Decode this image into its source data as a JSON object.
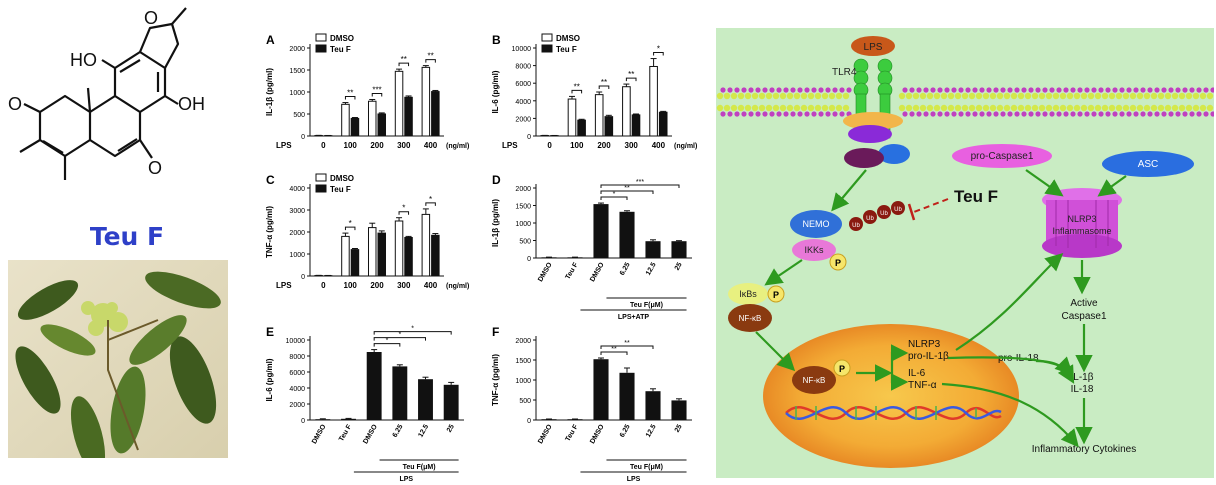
{
  "compound": {
    "name": "Teu F",
    "atom_labels": [
      "HO",
      "O",
      "OH",
      "O",
      "O"
    ]
  },
  "chart_data": [
    {
      "panel": "A",
      "type": "bar",
      "ylabel": "IL-1β (pg/ml)",
      "ylim": [
        0,
        2000
      ],
      "yticks": [
        0,
        500,
        1000,
        1500,
        2000
      ],
      "xlabel_prefix": "LPS",
      "x_unit": "(ng/ml)",
      "categories": [
        "0",
        "100",
        "200",
        "300",
        "400"
      ],
      "series": [
        {
          "name": "DMSO",
          "values": [
            10,
            720,
            790,
            1470,
            1560
          ],
          "errors": [
            5,
            40,
            40,
            50,
            40
          ]
        },
        {
          "name": "Teu F",
          "values": [
            8,
            400,
            500,
            880,
            1010
          ],
          "errors": [
            4,
            20,
            25,
            30,
            25
          ]
        }
      ],
      "significance": [
        "",
        "**",
        "***",
        "**",
        "**"
      ]
    },
    {
      "panel": "B",
      "type": "bar",
      "ylabel": "IL-6 (pg/ml)",
      "ylim": [
        0,
        10000
      ],
      "yticks": [
        0,
        2000,
        4000,
        6000,
        8000,
        10000
      ],
      "xlabel_prefix": "LPS",
      "x_unit": "(ng/ml)",
      "categories": [
        "0",
        "100",
        "200",
        "300",
        "400"
      ],
      "series": [
        {
          "name": "DMSO",
          "values": [
            50,
            4200,
            4700,
            5600,
            7900
          ],
          "errors": [
            20,
            300,
            300,
            300,
            900
          ]
        },
        {
          "name": "Teu F",
          "values": [
            40,
            1800,
            2200,
            2400,
            2700
          ],
          "errors": [
            20,
            100,
            150,
            100,
            100
          ]
        }
      ],
      "significance": [
        "",
        "**",
        "**",
        "**",
        "*"
      ]
    },
    {
      "panel": "C",
      "type": "bar",
      "ylabel": "TNF-α (pg/ml)",
      "ylim": [
        0,
        4000
      ],
      "yticks": [
        0,
        1000,
        2000,
        3000,
        4000
      ],
      "xlabel_prefix": "LPS",
      "x_unit": "(ng/ml)",
      "categories": [
        "0",
        "100",
        "200",
        "300",
        "400"
      ],
      "series": [
        {
          "name": "DMSO",
          "values": [
            20,
            1800,
            2200,
            2500,
            2800
          ],
          "errors": [
            10,
            150,
            200,
            150,
            250
          ]
        },
        {
          "name": "Teu F",
          "values": [
            15,
            1200,
            1950,
            1750,
            1850
          ],
          "errors": [
            10,
            50,
            100,
            50,
            80
          ]
        }
      ],
      "significance": [
        "",
        "*",
        "",
        "*",
        "*"
      ]
    },
    {
      "panel": "D",
      "type": "bar",
      "ylabel": "IL-1β (pg/ml)",
      "ylim": [
        0,
        2000
      ],
      "yticks": [
        0,
        500,
        1000,
        1500,
        2000
      ],
      "categories": [
        "DMSO",
        "Teu F",
        "DMSO",
        "6.25",
        "12.5",
        "25"
      ],
      "values": [
        20,
        20,
        1540,
        1320,
        480,
        480
      ],
      "errors": [
        5,
        5,
        30,
        30,
        40,
        15
      ],
      "group_label": "Teu F(μM)",
      "condition": "LPS+ATP",
      "comparisons": [
        "*",
        "**",
        "***"
      ]
    },
    {
      "panel": "E",
      "type": "bar",
      "ylabel": "IL-6 (pg/ml)",
      "ylim": [
        0,
        10000
      ],
      "yticks": [
        0,
        2000,
        4000,
        6000,
        8000,
        10000
      ],
      "categories": [
        "DMSO",
        "Teu F",
        "DMSO",
        "6.25",
        "12.5",
        "25"
      ],
      "values": [
        100,
        150,
        8500,
        6700,
        5100,
        4400
      ],
      "errors": [
        50,
        50,
        300,
        200,
        250,
        300
      ],
      "group_label": "Teu F(μM)",
      "condition": "LPS",
      "comparisons": [
        "*",
        "*",
        "*"
      ]
    },
    {
      "panel": "F",
      "type": "bar",
      "ylabel": "TNF-α (pg/ml)",
      "ylim": [
        0,
        2000
      ],
      "yticks": [
        0,
        500,
        1000,
        1500,
        2000
      ],
      "categories": [
        "DMSO",
        "Teu F",
        "DMSO",
        "6.25",
        "12.5",
        "25"
      ],
      "values": [
        20,
        20,
        1520,
        1180,
        720,
        490
      ],
      "errors": [
        5,
        5,
        30,
        120,
        60,
        40
      ],
      "group_label": "Teu F(μM)",
      "condition": "LPS",
      "comparisons": [
        "**",
        "**"
      ]
    }
  ],
  "pathway": {
    "lps": "LPS",
    "tlr4": "TLR4",
    "teu_f": "Teu F",
    "nemo": "NEMO",
    "ikks": "IKKs",
    "p": "P",
    "ub": "Ub",
    "ikbs": "IκBs",
    "nfkb": "NF-κB",
    "pro_caspase1": "pro-Caspase1",
    "asc": "ASC",
    "nlrp3_inflammasome": [
      "NLRP3",
      "Inflammasome"
    ],
    "active_caspase1": [
      "Active",
      "Caspase1"
    ],
    "pro_il18": "pro-IL-18",
    "genes": [
      "NLRP3",
      "pro-IL-1β",
      "IL-6",
      "TNF-α"
    ],
    "outputs": [
      "IL-1β",
      "IL-18"
    ],
    "inflammatory_cytokines": "Inflammatory Cytokines",
    "colors": {
      "background": "#c9ecc3",
      "membrane_head": "#d4e84a",
      "membrane_tail": "#c040c0",
      "arrow": "#2e9a1f",
      "inhibit": "#c0221a",
      "nucleus": "#f2a23a",
      "nucleus_inner": "#f6c24a",
      "tlr4": "#38c83a",
      "nlrp3": "#d050d8",
      "asc": "#2a6ee0",
      "procasp": "#e050d8",
      "nemo": "#3070d8",
      "ikks": "#e878d8"
    }
  }
}
